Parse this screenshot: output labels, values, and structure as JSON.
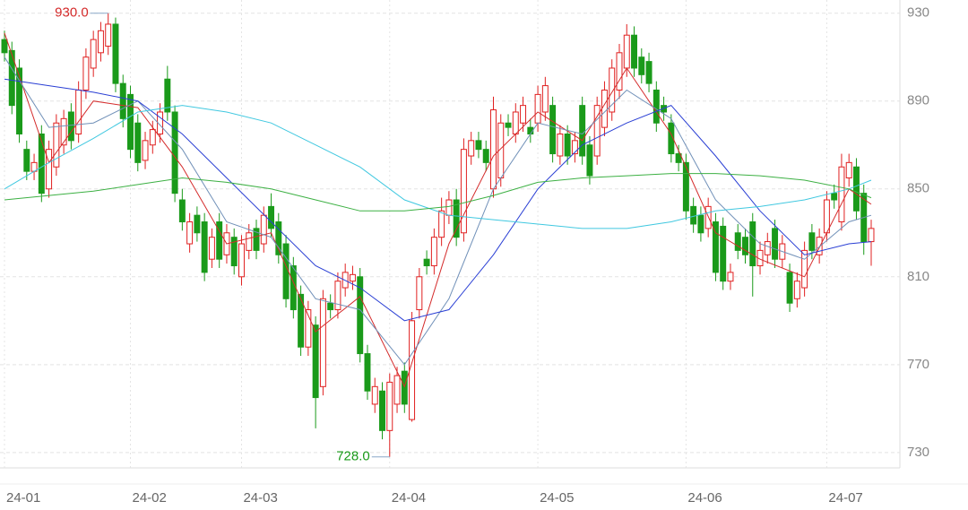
{
  "chart_data": {
    "type": "candlestick",
    "categories": [
      "24-01",
      null,
      null,
      null,
      null,
      null,
      null,
      null,
      null,
      null,
      null,
      null,
      null,
      null,
      null,
      null,
      null,
      "24-02",
      null,
      null,
      null,
      null,
      null,
      null,
      null,
      null,
      null,
      null,
      null,
      null,
      null,
      null,
      "24-03",
      null,
      null,
      null,
      null,
      null,
      null,
      null,
      null,
      null,
      null,
      null,
      null,
      null,
      null,
      null,
      null,
      null,
      null,
      null,
      "24-04",
      null,
      null,
      null,
      null,
      null,
      null,
      null,
      null,
      null,
      null,
      null,
      null,
      null,
      null,
      null,
      null,
      null,
      null,
      null,
      "24-05",
      null,
      null,
      null,
      null,
      null,
      null,
      null,
      null,
      null,
      null,
      null,
      null,
      null,
      null,
      null,
      null,
      null,
      null,
      null,
      "24-06",
      null,
      null,
      null,
      null,
      null,
      null,
      null,
      null,
      null,
      null,
      null,
      null,
      null,
      null,
      null,
      null,
      null,
      null,
      "24-07",
      null,
      null,
      null,
      null,
      null,
      null
    ],
    "open": [
      918,
      913,
      905,
      868,
      858,
      875,
      850,
      860,
      870,
      885,
      875,
      895,
      905,
      912,
      915,
      925,
      898,
      893,
      880,
      863,
      870,
      875,
      900,
      885,
      845,
      825,
      838,
      835,
      818,
      835,
      820,
      828,
      810,
      822,
      832,
      825,
      842,
      835,
      825,
      815,
      802,
      778,
      788,
      760,
      798,
      795,
      805,
      808,
      810,
      775,
      752,
      758,
      740,
      752,
      767,
      745,
      795,
      818,
      815,
      828,
      838,
      845,
      830,
      865,
      872,
      868,
      850,
      855,
      880,
      875,
      880,
      878,
      880,
      885,
      888,
      865,
      875,
      866,
      888,
      870,
      865,
      878,
      885,
      895,
      905,
      920,
      910,
      908,
      895,
      888,
      880,
      866,
      862,
      842,
      838,
      832,
      835,
      833,
      808,
      830,
      828,
      835,
      815,
      820,
      832,
      818,
      812,
      800,
      805,
      830,
      820,
      830,
      848,
      835,
      855,
      860,
      848,
      826
    ],
    "high": [
      922,
      917,
      909,
      872,
      866,
      879,
      872,
      884,
      886,
      889,
      899,
      914,
      922,
      926,
      930,
      928,
      902,
      897,
      884,
      876,
      881,
      889,
      906,
      888,
      850,
      839,
      842,
      839,
      832,
      839,
      834,
      832,
      829,
      834,
      836,
      842,
      848,
      839,
      829,
      819,
      806,
      799,
      792,
      804,
      802,
      812,
      816,
      815,
      814,
      779,
      764,
      762,
      766,
      769,
      771,
      794,
      814,
      822,
      832,
      846,
      849,
      850,
      873,
      876,
      876,
      872,
      892,
      884,
      884,
      889,
      892,
      882,
      897,
      901,
      892,
      879,
      879,
      876,
      892,
      874,
      892,
      899,
      909,
      916,
      925,
      924,
      914,
      912,
      899,
      892,
      884,
      870,
      866,
      846,
      842,
      846,
      839,
      837,
      816,
      834,
      832,
      839,
      826,
      830,
      836,
      829,
      816,
      812,
      826,
      834,
      832,
      849,
      852,
      866,
      866,
      864,
      852,
      836
    ],
    "low": [
      908,
      884,
      871,
      854,
      854,
      844,
      846,
      856,
      866,
      868,
      871,
      891,
      901,
      908,
      911,
      894,
      878,
      864,
      858,
      859,
      866,
      871,
      881,
      844,
      831,
      821,
      826,
      808,
      814,
      814,
      816,
      811,
      806,
      818,
      818,
      821,
      828,
      816,
      796,
      791,
      774,
      774,
      741,
      756,
      791,
      791,
      801,
      804,
      771,
      754,
      748,
      736,
      728,
      748,
      748,
      744,
      791,
      811,
      811,
      824,
      834,
      824,
      826,
      861,
      864,
      858,
      846,
      851,
      874,
      871,
      876,
      871,
      876,
      881,
      862,
      861,
      861,
      862,
      861,
      852,
      861,
      874,
      881,
      891,
      901,
      901,
      898,
      894,
      876,
      881,
      862,
      858,
      836,
      830,
      826,
      828,
      808,
      804,
      804,
      818,
      816,
      801,
      811,
      816,
      814,
      814,
      794,
      796,
      801,
      818,
      816,
      826,
      841,
      831,
      851,
      836,
      820,
      815
    ],
    "close": [
      912,
      888,
      875,
      858,
      862,
      848,
      868,
      880,
      882,
      872,
      895,
      910,
      918,
      922,
      925,
      898,
      882,
      868,
      862,
      872,
      877,
      885,
      885,
      848,
      835,
      835,
      830,
      812,
      828,
      818,
      830,
      815,
      825,
      830,
      822,
      838,
      832,
      820,
      800,
      795,
      778,
      795,
      755,
      800,
      795,
      808,
      812,
      811,
      775,
      758,
      760,
      740,
      762,
      765,
      752,
      790,
      810,
      815,
      828,
      840,
      845,
      828,
      868,
      872,
      868,
      862,
      886,
      880,
      878,
      885,
      888,
      875,
      893,
      897,
      866,
      875,
      865,
      872,
      865,
      856,
      888,
      895,
      905,
      912,
      920,
      905,
      902,
      898,
      880,
      885,
      866,
      862,
      840,
      834,
      830,
      842,
      812,
      808,
      812,
      822,
      820,
      815,
      822,
      826,
      818,
      825,
      798,
      808,
      822,
      822,
      828,
      845,
      845,
      860,
      862,
      840,
      826,
      832
    ],
    "up_color": "#e02020",
    "down_color": "#1a9a1a",
    "lines": [
      {
        "color": "#d42b2b",
        "x": [
          0,
          6,
          12,
          18,
          24,
          30,
          36,
          42,
          48,
          54,
          60,
          66,
          72,
          78,
          84,
          90,
          96,
          102,
          108,
          114,
          117
        ],
        "values": [
          921,
          862,
          890,
          887,
          860,
          825,
          830,
          785,
          801,
          760,
          825,
          865,
          885,
          872,
          905,
          875,
          830,
          818,
          810,
          850,
          843
        ]
      },
      {
        "color": "#7090b8",
        "x": [
          0,
          6,
          12,
          18,
          24,
          30,
          36,
          42,
          48,
          54,
          60,
          66,
          72,
          78,
          84,
          90,
          96,
          102,
          108,
          114,
          117
        ],
        "values": [
          910,
          878,
          880,
          890,
          868,
          835,
          828,
          800,
          795,
          770,
          800,
          850,
          880,
          875,
          895,
          882,
          845,
          825,
          818,
          835,
          838
        ]
      },
      {
        "color": "#2a3fd4",
        "x": [
          0,
          6,
          12,
          18,
          24,
          30,
          36,
          42,
          48,
          54,
          60,
          66,
          72,
          78,
          84,
          90,
          96,
          102,
          108,
          114,
          117
        ],
        "values": [
          900,
          897,
          894,
          890,
          875,
          855,
          835,
          815,
          805,
          790,
          795,
          820,
          850,
          870,
          880,
          888,
          865,
          840,
          820,
          825,
          826
        ]
      },
      {
        "color": "#40c8e0",
        "x": [
          0,
          6,
          12,
          18,
          24,
          30,
          36,
          42,
          48,
          54,
          60,
          66,
          72,
          78,
          84,
          90,
          96,
          102,
          108,
          114,
          117
        ],
        "values": [
          850,
          862,
          873,
          885,
          888,
          885,
          880,
          870,
          860,
          845,
          838,
          836,
          834,
          832,
          832,
          835,
          840,
          842,
          845,
          850,
          854
        ]
      },
      {
        "color": "#3cb043",
        "x": [
          0,
          6,
          12,
          18,
          24,
          30,
          36,
          42,
          48,
          54,
          60,
          66,
          72,
          78,
          84,
          90,
          96,
          102,
          108,
          114,
          117
        ],
        "values": [
          845,
          847,
          849,
          852,
          855,
          853,
          850,
          845,
          840,
          840,
          842,
          847,
          853,
          855,
          856,
          857,
          857,
          856,
          854,
          850,
          846
        ]
      }
    ],
    "annotations": [
      {
        "label": "930.0",
        "value": 930,
        "index": 14,
        "color": "#d42b2b"
      },
      {
        "label": "728.0",
        "value": 728,
        "index": 52,
        "color": "#1a9a1a"
      }
    ],
    "ylim": [
      723,
      936
    ],
    "yticks": [
      730,
      770,
      810,
      850,
      890,
      930
    ],
    "grid": true
  }
}
